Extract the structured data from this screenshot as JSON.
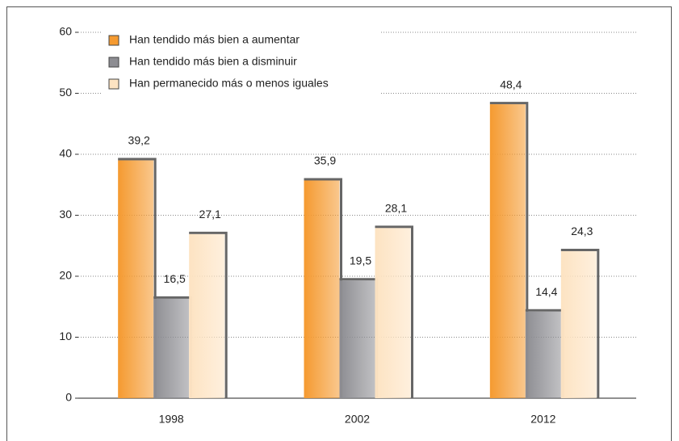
{
  "chart_data": {
    "type": "bar",
    "categories": [
      "1998",
      "2002",
      "2012"
    ],
    "series": [
      {
        "name": "Han tendido más bien a aumentar",
        "color": "#f59a30",
        "values": [
          39.2,
          35.9,
          48.4
        ],
        "value_labels": [
          "39,2",
          "35,9",
          "48,4"
        ]
      },
      {
        "name": "Han tendido más bien a disminuir",
        "color": "#8d8d92",
        "values": [
          16.5,
          19.5,
          14.4
        ],
        "value_labels": [
          "16,5",
          "19,5",
          "14,4"
        ]
      },
      {
        "name": "Han permanecido más o menos iguales",
        "color": "#fde3c2",
        "values": [
          27.1,
          28.1,
          24.3
        ],
        "value_labels": [
          "27,1",
          "28,1",
          "24,3"
        ]
      }
    ],
    "ylim": [
      0,
      60
    ],
    "yticks": [
      0,
      10,
      20,
      30,
      40,
      50,
      60
    ],
    "grid": true,
    "legend": "top-left"
  }
}
